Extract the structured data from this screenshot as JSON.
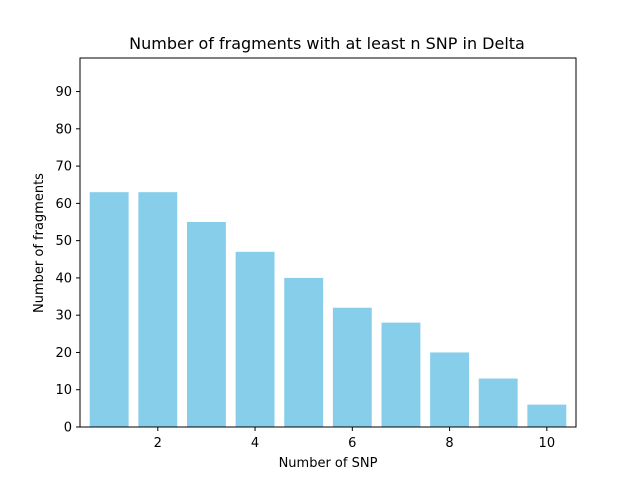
{
  "chart_data": {
    "type": "bar",
    "title": "Number of fragments with at least n SNP in Delta",
    "xlabel": "Number of SNP",
    "ylabel": "Number of fragments",
    "x": [
      1,
      2,
      3,
      4,
      5,
      6,
      7,
      8,
      9,
      10
    ],
    "values": [
      63,
      63,
      55,
      47,
      40,
      32,
      28,
      20,
      13,
      6
    ],
    "xlim": [
      0.4,
      10.6
    ],
    "ylim": [
      0,
      99
    ],
    "xticks": [
      2,
      4,
      6,
      8,
      10
    ],
    "yticks": [
      0,
      10,
      20,
      30,
      40,
      50,
      60,
      70,
      80,
      90
    ],
    "bar_color": "#87ceeb",
    "grid": false,
    "legend": "none"
  }
}
